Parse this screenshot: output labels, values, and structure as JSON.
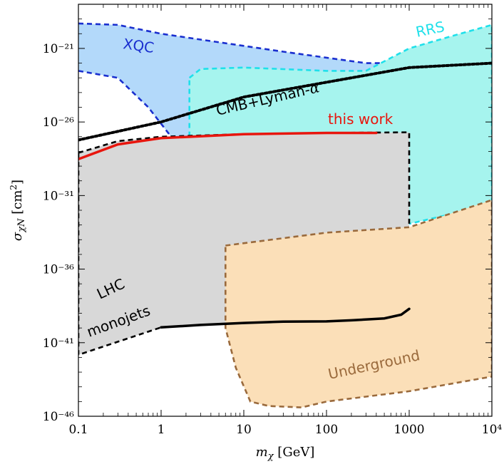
{
  "chart_data": {
    "type": "area",
    "title": "",
    "xlabel": "m_χ [GeV]",
    "ylabel": "σ_χN [cm²]",
    "xscale": "log",
    "yscale": "log",
    "xlim": [
      0.1,
      10000
    ],
    "ylim": [
      1e-46,
      1e-18
    ],
    "x_ticks": [
      {
        "value": 0.1,
        "label": "0.1"
      },
      {
        "value": 1,
        "label": "1"
      },
      {
        "value": 10,
        "label": "10"
      },
      {
        "value": 100,
        "label": "100"
      },
      {
        "value": 1000,
        "label": "1000"
      },
      {
        "value": 10000,
        "label": "10⁴"
      }
    ],
    "y_ticks": [
      {
        "value": 1e-46,
        "label": "10⁻⁴⁶"
      },
      {
        "value": 1e-41,
        "label": "10⁻⁴¹"
      },
      {
        "value": 1e-36,
        "label": "10⁻³⁶"
      },
      {
        "value": 1e-31,
        "label": "10⁻³¹"
      },
      {
        "value": 1e-26,
        "label": "10⁻²⁶"
      },
      {
        "value": 1e-21,
        "label": "10⁻²¹"
      }
    ],
    "grid": false,
    "regions": [
      {
        "name": "XQC",
        "fill": "#b3d9fa",
        "stroke": "#1a2fcf",
        "dash": true,
        "upper": [
          [
            0.1,
            5e-20
          ],
          [
            0.3,
            4e-20
          ],
          [
            1,
            1e-20
          ],
          [
            3,
            4e-21
          ],
          [
            30,
            6e-22
          ],
          [
            300,
            1e-22
          ],
          [
            1000,
            1e-22
          ],
          [
            10000,
            3e-22
          ]
        ],
        "lower": [
          [
            0.1,
            3e-23
          ],
          [
            0.3,
            1e-23
          ],
          [
            0.7,
            1e-25
          ],
          [
            2,
            5e-29
          ],
          [
            3,
            1e-29
          ],
          [
            10,
            1e-29
          ],
          [
            30,
            6e-30
          ],
          [
            100,
            1e-29
          ],
          [
            300,
            1e-29
          ],
          [
            1200,
            4e-30
          ],
          [
            10000,
            1e-29
          ]
        ]
      },
      {
        "name": "RRS",
        "fill": "#a6f4ee",
        "stroke": "#1fe0ea",
        "dash": true,
        "polygon": [
          [
            2.2,
            1e-23
          ],
          [
            3,
            4e-23
          ],
          [
            10,
            5e-23
          ],
          [
            100,
            3e-23
          ],
          [
            300,
            3e-23
          ],
          [
            1000,
            1e-21
          ],
          [
            3000,
            6e-21
          ],
          [
            10000,
            4e-20
          ],
          [
            10000,
            1e-32
          ],
          [
            3000,
            5e-33
          ],
          [
            1000,
            1.2e-33
          ],
          [
            300,
            2e-34
          ],
          [
            100,
            1e-34
          ],
          [
            20,
            6e-35
          ],
          [
            14,
            2e-34
          ],
          [
            13,
            1e-30
          ],
          [
            12,
            5e-30
          ],
          [
            5,
            1e-29
          ],
          [
            3,
            1e-29
          ],
          [
            2.2,
            1e-28
          ]
        ]
      },
      {
        "name": "LHC monojets",
        "fill": "#d8d8d8",
        "stroke": "#000000",
        "dash": true,
        "polygon": [
          [
            0.1,
            8e-29
          ],
          [
            0.3,
            5e-28
          ],
          [
            1,
            1e-27
          ],
          [
            10,
            1.5e-27
          ],
          [
            100,
            1.8e-27
          ],
          [
            1000,
            2e-27
          ],
          [
            1000,
            2e-39
          ],
          [
            800,
            8e-40
          ],
          [
            500,
            4e-40
          ],
          [
            200,
            3.5e-40
          ],
          [
            30,
            2.7e-40
          ],
          [
            10,
            2.2e-40
          ],
          [
            3,
            1.6e-40
          ],
          [
            1,
            1.1e-40
          ],
          [
            0.5,
            3e-41
          ],
          [
            0.1,
            1.5e-42
          ]
        ]
      },
      {
        "name": "Underground",
        "fill": "#fbdfb8",
        "stroke": "#9a6a3c",
        "dash": true,
        "polygon": [
          [
            6,
            4e-35
          ],
          [
            100,
            3e-34
          ],
          [
            1000,
            7e-34
          ],
          [
            10000,
            5e-32
          ],
          [
            10000,
            5e-44
          ],
          [
            1000,
            5e-45
          ],
          [
            100,
            1e-45
          ],
          [
            50,
            4e-46
          ],
          [
            20,
            5e-46
          ],
          [
            12,
            1e-45
          ],
          [
            8,
            2e-43
          ],
          [
            6,
            1e-40
          ]
        ]
      }
    ],
    "lines": [
      {
        "name": "CMB+Lyman-α",
        "color": "#000000",
        "style": "dotted",
        "points": [
          [
            0.1,
            6e-28
          ],
          [
            1,
            1e-26
          ],
          [
            10,
            5e-25
          ],
          [
            100,
            5e-24
          ],
          [
            1000,
            5e-23
          ],
          [
            10000,
            1e-22
          ]
        ]
      },
      {
        "name": "this work",
        "color": "#e8160e",
        "style": "solid",
        "points": [
          [
            0.1,
            3e-29
          ],
          [
            0.3,
            3e-28
          ],
          [
            1,
            8e-28
          ],
          [
            10,
            1.5e-27
          ],
          [
            100,
            1.8e-27
          ],
          [
            400,
            1.8e-27
          ]
        ]
      },
      {
        "name": "",
        "color": "#000000",
        "style": "solid",
        "points": [
          [
            1,
            1.1e-40
          ],
          [
            3,
            1.6e-40
          ],
          [
            10,
            2.2e-40
          ],
          [
            30,
            2.7e-40
          ],
          [
            100,
            2.8e-40
          ],
          [
            200,
            3.3e-40
          ],
          [
            500,
            4.5e-40
          ],
          [
            800,
            8e-40
          ],
          [
            1000,
            2e-39
          ]
        ]
      }
    ],
    "labels": [
      {
        "text": "XQC",
        "color": "#1a2fcf"
      },
      {
        "text": "RRS",
        "color": "#1fe0ea"
      },
      {
        "text": "CMB+Lyman-",
        "color": "#000000",
        "suffix": "α"
      },
      {
        "text": "this work",
        "color": "#e8160e"
      },
      {
        "text": "LHC",
        "color": "#000000"
      },
      {
        "text": "monojets",
        "color": "#000000"
      },
      {
        "text": "Underground",
        "color": "#9a6a3c"
      }
    ]
  }
}
